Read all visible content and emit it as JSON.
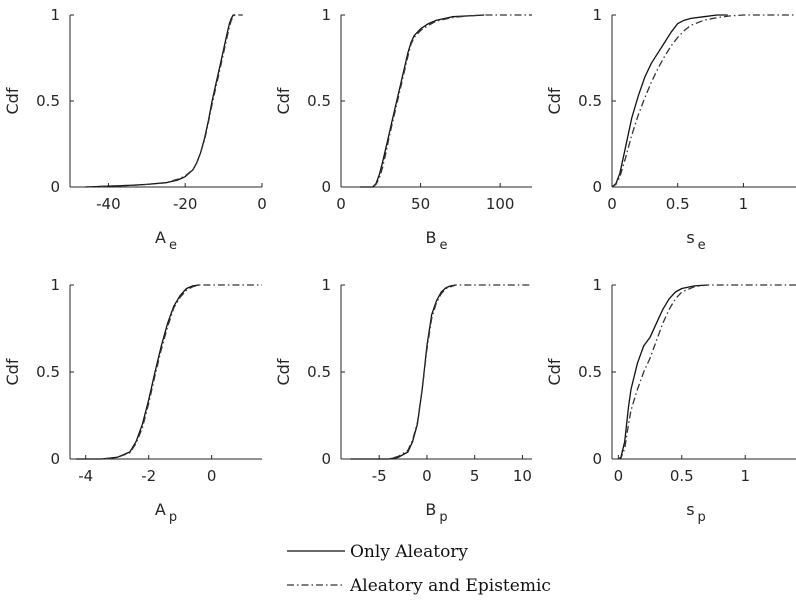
{
  "colors": {
    "only": "#111111",
    "both": "#333333",
    "axis": "#262626"
  },
  "legend": {
    "entries": [
      {
        "label": "Only Aleatory",
        "style": "solid"
      },
      {
        "label": "Aleatory and Epistemic",
        "style": "dash-dot"
      }
    ],
    "placement": "bottom-center"
  },
  "chart_data": [
    {
      "type": "line",
      "ylabel": "Cdf",
      "xlabel_main": "A",
      "xlabel_sub": "e",
      "xlim": [
        -50,
        0
      ],
      "ylim": [
        0,
        1
      ],
      "xticks": [
        -40,
        -20,
        0
      ],
      "xtick_labels": [
        "-40",
        "-20",
        "0"
      ],
      "yticks": [
        0,
        0.5,
        1
      ],
      "ytick_labels": [
        "0",
        "0.5",
        "1"
      ],
      "series": [
        {
          "name": "Only Aleatory",
          "style": "solid",
          "x": [
            -46,
            -40,
            -34,
            -30,
            -25,
            -22,
            -20,
            -18,
            -17,
            -16,
            -15,
            -14,
            -13,
            -12,
            -11,
            -10,
            -9,
            -8.5,
            -8,
            -7.5,
            -7
          ],
          "y": [
            0,
            0.005,
            0.01,
            0.015,
            0.025,
            0.04,
            0.06,
            0.1,
            0.14,
            0.2,
            0.28,
            0.38,
            0.5,
            0.6,
            0.7,
            0.8,
            0.9,
            0.95,
            0.98,
            1,
            1
          ]
        },
        {
          "name": "Aleatory and Epistemic",
          "style": "dash-dot",
          "x": [
            -46,
            -40,
            -34,
            -30,
            -25,
            -22,
            -20,
            -18,
            -17,
            -16,
            -15,
            -14,
            -13,
            -12,
            -11,
            -10,
            -9,
            -8.5,
            -8,
            -7.5,
            -7,
            -5
          ],
          "y": [
            0,
            0.005,
            0.01,
            0.015,
            0.025,
            0.045,
            0.065,
            0.1,
            0.14,
            0.2,
            0.27,
            0.37,
            0.48,
            0.58,
            0.68,
            0.78,
            0.88,
            0.93,
            0.97,
            0.99,
            1,
            1
          ]
        }
      ]
    },
    {
      "type": "line",
      "ylabel": "Cdf",
      "xlabel_main": "B",
      "xlabel_sub": "e",
      "xlim": [
        0,
        120
      ],
      "ylim": [
        0,
        1
      ],
      "xticks": [
        0,
        50,
        100
      ],
      "xtick_labels": [
        "0",
        "50",
        "100"
      ],
      "yticks": [
        0,
        0.5,
        1
      ],
      "ytick_labels": [
        "0",
        "0.5",
        "1"
      ],
      "series": [
        {
          "name": "Only Aleatory",
          "style": "solid",
          "x": [
            12,
            20,
            22,
            24,
            26,
            28,
            30,
            32,
            34,
            36,
            38,
            40,
            42,
            44,
            46,
            50,
            55,
            60,
            70,
            80,
            90
          ],
          "y": [
            0,
            0,
            0.02,
            0.07,
            0.14,
            0.22,
            0.3,
            0.38,
            0.46,
            0.54,
            0.62,
            0.7,
            0.78,
            0.84,
            0.88,
            0.92,
            0.95,
            0.97,
            0.99,
            0.995,
            1
          ]
        },
        {
          "name": "Aleatory and Epistemic",
          "style": "dash-dot",
          "x": [
            12,
            20,
            22,
            24,
            26,
            28,
            30,
            32,
            34,
            36,
            38,
            40,
            42,
            44,
            46,
            50,
            55,
            60,
            70,
            80,
            90,
            120
          ],
          "y": [
            0,
            0,
            0.015,
            0.05,
            0.11,
            0.19,
            0.28,
            0.36,
            0.44,
            0.52,
            0.6,
            0.68,
            0.76,
            0.83,
            0.87,
            0.91,
            0.94,
            0.965,
            0.985,
            0.995,
            1,
            1
          ]
        }
      ]
    },
    {
      "type": "line",
      "ylabel": "Cdf",
      "xlabel_main": "s",
      "xlabel_sub": "e",
      "xlim": [
        0,
        1.4
      ],
      "ylim": [
        0,
        1
      ],
      "xticks": [
        0,
        0.5,
        1
      ],
      "xtick_labels": [
        "0",
        "0.5",
        "1"
      ],
      "yticks": [
        0,
        0.5,
        1
      ],
      "ytick_labels": [
        "0",
        "0.5",
        "1"
      ],
      "series": [
        {
          "name": "Only Aleatory",
          "style": "solid",
          "x": [
            0,
            0.03,
            0.06,
            0.1,
            0.15,
            0.2,
            0.25,
            0.3,
            0.35,
            0.4,
            0.45,
            0.5,
            0.55,
            0.6,
            0.7,
            0.8,
            0.88
          ],
          "y": [
            0,
            0.02,
            0.08,
            0.22,
            0.4,
            0.53,
            0.64,
            0.72,
            0.78,
            0.84,
            0.9,
            0.95,
            0.97,
            0.98,
            0.99,
            1,
            1
          ]
        },
        {
          "name": "Aleatory and Epistemic",
          "style": "dash-dot",
          "x": [
            0,
            0.03,
            0.06,
            0.1,
            0.15,
            0.2,
            0.25,
            0.3,
            0.35,
            0.4,
            0.45,
            0.5,
            0.55,
            0.6,
            0.7,
            0.8,
            0.9,
            1.0,
            1.4
          ],
          "y": [
            0,
            0.015,
            0.06,
            0.16,
            0.3,
            0.42,
            0.52,
            0.61,
            0.69,
            0.76,
            0.82,
            0.87,
            0.91,
            0.94,
            0.97,
            0.985,
            0.995,
            1,
            1
          ]
        }
      ]
    },
    {
      "type": "line",
      "ylabel": "Cdf",
      "xlabel_main": "A",
      "xlabel_sub": "p",
      "xlim": [
        -4.5,
        1.6
      ],
      "ylim": [
        0,
        1
      ],
      "xticks": [
        -4,
        -2,
        0
      ],
      "xtick_labels": [
        "-4",
        "-2",
        "0"
      ],
      "yticks": [
        0,
        0.5,
        1
      ],
      "ytick_labels": [
        "0",
        "0.5",
        "1"
      ],
      "series": [
        {
          "name": "Only Aleatory",
          "style": "solid",
          "x": [
            -4.3,
            -3.5,
            -3.0,
            -2.6,
            -2.4,
            -2.2,
            -2.0,
            -1.8,
            -1.6,
            -1.4,
            -1.2,
            -1.0,
            -0.8,
            -0.6,
            -0.4
          ],
          "y": [
            0,
            0,
            0.01,
            0.04,
            0.1,
            0.2,
            0.34,
            0.5,
            0.65,
            0.78,
            0.88,
            0.94,
            0.98,
            0.995,
            1
          ]
        },
        {
          "name": "Aleatory and Epistemic",
          "style": "dash-dot",
          "x": [
            -4.3,
            -3.5,
            -3.0,
            -2.6,
            -2.4,
            -2.2,
            -2.0,
            -1.8,
            -1.6,
            -1.4,
            -1.2,
            -1.0,
            -0.8,
            -0.6,
            -0.4,
            1.6
          ],
          "y": [
            0,
            0,
            0.01,
            0.035,
            0.09,
            0.18,
            0.32,
            0.48,
            0.63,
            0.76,
            0.87,
            0.93,
            0.97,
            0.99,
            1,
            1
          ]
        }
      ]
    },
    {
      "type": "line",
      "ylabel": "Cdf",
      "xlabel_main": "B",
      "xlabel_sub": "p",
      "xlim": [
        -9,
        11
      ],
      "ylim": [
        0,
        1
      ],
      "xticks": [
        -5,
        0,
        5,
        10
      ],
      "xtick_labels": [
        "-5",
        "0",
        "5",
        "10"
      ],
      "yticks": [
        0,
        0.5,
        1
      ],
      "ytick_labels": [
        "0",
        "0.5",
        "1"
      ],
      "series": [
        {
          "name": "Only Aleatory",
          "style": "solid",
          "x": [
            -8,
            -4,
            -3,
            -2,
            -1.5,
            -1,
            -0.5,
            0,
            0.5,
            1,
            1.5,
            2,
            2.5,
            3
          ],
          "y": [
            0,
            0,
            0.01,
            0.04,
            0.1,
            0.2,
            0.4,
            0.65,
            0.83,
            0.91,
            0.96,
            0.985,
            0.995,
            1
          ]
        },
        {
          "name": "Aleatory and Epistemic",
          "style": "dash-dot",
          "x": [
            -8,
            -4,
            -3,
            -2,
            -1.5,
            -1,
            -0.5,
            0,
            0.5,
            1,
            1.5,
            2,
            2.5,
            3,
            11
          ],
          "y": [
            0,
            0,
            0.015,
            0.05,
            0.11,
            0.21,
            0.4,
            0.63,
            0.81,
            0.9,
            0.95,
            0.98,
            0.99,
            1,
            1
          ]
        }
      ]
    },
    {
      "type": "line",
      "ylabel": "Cdf",
      "xlabel_main": "s",
      "xlabel_sub": "p",
      "xlim": [
        -0.05,
        1.4
      ],
      "ylim": [
        0,
        1
      ],
      "xticks": [
        0,
        0.5,
        1
      ],
      "xtick_labels": [
        "0",
        "0.5",
        "1"
      ],
      "yticks": [
        0,
        0.5,
        1
      ],
      "ytick_labels": [
        "0",
        "0.5",
        "1"
      ],
      "series": [
        {
          "name": "Only Aleatory",
          "style": "solid",
          "x": [
            0,
            0.02,
            0.05,
            0.08,
            0.1,
            0.15,
            0.2,
            0.25,
            0.3,
            0.35,
            0.4,
            0.45,
            0.5,
            0.6,
            0.7
          ],
          "y": [
            0,
            0.01,
            0.1,
            0.3,
            0.4,
            0.55,
            0.65,
            0.7,
            0.78,
            0.86,
            0.92,
            0.96,
            0.98,
            0.995,
            1
          ]
        },
        {
          "name": "Aleatory and Epistemic",
          "style": "dash-dot",
          "x": [
            0,
            0.02,
            0.05,
            0.08,
            0.1,
            0.15,
            0.2,
            0.25,
            0.3,
            0.35,
            0.4,
            0.45,
            0.5,
            0.6,
            0.7,
            1.4
          ],
          "y": [
            0,
            0.005,
            0.06,
            0.2,
            0.28,
            0.4,
            0.5,
            0.58,
            0.68,
            0.78,
            0.86,
            0.92,
            0.96,
            0.99,
            1,
            1
          ]
        }
      ]
    }
  ]
}
